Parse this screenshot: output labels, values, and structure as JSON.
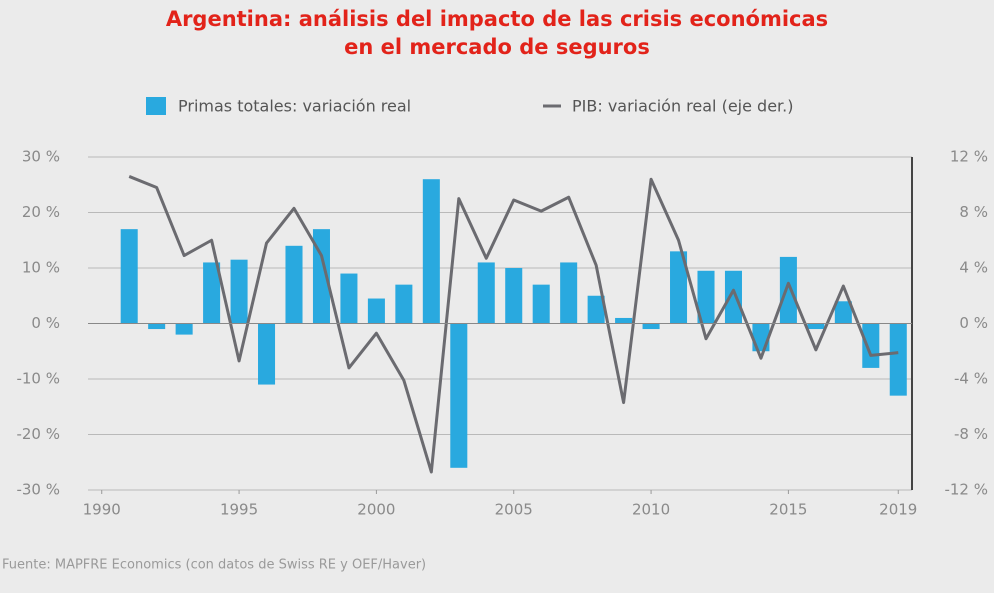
{
  "chart_data": {
    "type": "bar-line",
    "title": [
      "Argentina: análisis del impacto de las crisis económicas",
      "en el mercado de seguros"
    ],
    "source": "Fuente: MAPFRE Economics (con datos de Swiss RE y OEF/Haver)",
    "xlim": [
      1989.5,
      2019.5
    ],
    "xticks": [
      1990,
      1995,
      2000,
      2005,
      2010,
      2015,
      2019
    ],
    "ylim": [
      -30,
      30
    ],
    "yticks": [
      {
        "value": -30,
        "label": "-30 %"
      },
      {
        "value": -20,
        "label": "-20 %"
      },
      {
        "value": -10,
        "label": "-10 %"
      },
      {
        "value": 0,
        "label": "0 %"
      },
      {
        "value": 10,
        "label": "10 %"
      },
      {
        "value": 20,
        "label": "20 %"
      },
      {
        "value": 30,
        "label": "30 %"
      }
    ],
    "y2lim": [
      -12,
      12
    ],
    "y2ticks": [
      {
        "value": -12,
        "label": "-12 %"
      },
      {
        "value": -8,
        "label": "-8 %"
      },
      {
        "value": -4,
        "label": "-4 %"
      },
      {
        "value": 0,
        "label": "0 %"
      },
      {
        "value": 4,
        "label": "4 %"
      },
      {
        "value": 8,
        "label": "8 %"
      },
      {
        "value": 12,
        "label": "12 %"
      }
    ],
    "grid": true,
    "x": [
      1991,
      1992,
      1993,
      1994,
      1995,
      1996,
      1997,
      1998,
      1999,
      2000,
      2001,
      2002,
      2003,
      2004,
      2005,
      2006,
      2007,
      2008,
      2009,
      2010,
      2011,
      2012,
      2013,
      2014,
      2015,
      2016,
      2017,
      2018,
      2019
    ],
    "series": [
      {
        "name": "Primas totales: variación real",
        "type": "bar",
        "color": "#29a9df",
        "values": [
          17,
          -1,
          -2,
          11,
          11.5,
          -11,
          14,
          17,
          9,
          4.5,
          7,
          26,
          -26,
          11,
          10,
          7,
          11,
          5,
          1,
          -1,
          13,
          9.5,
          9.5,
          -5,
          12,
          -1,
          4,
          -8,
          -13
        ]
      },
      {
        "name": "PIB: variación real (eje der.)",
        "type": "line",
        "axis": "y2",
        "color": "#6b6b70",
        "values": [
          10.6,
          9.8,
          4.9,
          6.0,
          -2.7,
          5.8,
          8.3,
          4.9,
          -3.2,
          -0.7,
          -4.1,
          -10.7,
          9.0,
          4.7,
          8.9,
          8.1,
          9.1,
          4.2,
          -5.7,
          10.4,
          6.0,
          -1.1,
          2.4,
          -2.5,
          2.9,
          -1.9,
          2.7,
          -2.3,
          -2.1
        ]
      }
    ]
  }
}
